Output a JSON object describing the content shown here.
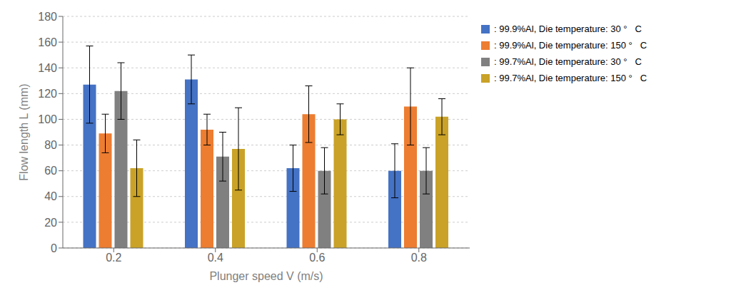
{
  "chart_data": {
    "type": "bar",
    "categories": [
      "0.2",
      "0.4",
      "0.6",
      "0.8"
    ],
    "series": [
      {
        "name": ": 99.9%Al, Die temperature: 30 °   C",
        "color": "#4472C4",
        "values": [
          127,
          131,
          62,
          60
        ],
        "errors": [
          30,
          19,
          18,
          21
        ]
      },
      {
        "name": ": 99.9%Al, Die temperature: 150 °   C",
        "color": "#ED7D31",
        "values": [
          89,
          92,
          104,
          110
        ],
        "errors": [
          15,
          12,
          22,
          30
        ]
      },
      {
        "name": ": 99.7%Al, Die temperature: 30 °   C",
        "color": "#808080",
        "values": [
          122,
          71,
          60,
          60
        ],
        "errors": [
          22,
          19,
          18,
          18
        ]
      },
      {
        "name": ": 99.7%Al, Die temperature: 150 °   C",
        "color": "#C9A227",
        "values": [
          62,
          77,
          100,
          102
        ],
        "errors": [
          22,
          32,
          12,
          14
        ]
      }
    ],
    "xlabel": "Plunger speed V (m/s)",
    "ylabel": "Flow length L (mm)",
    "ylim": [
      0,
      180
    ],
    "yticks": [
      0,
      20,
      40,
      60,
      80,
      100,
      120,
      140,
      160,
      180
    ],
    "grid": true,
    "legend": "right"
  }
}
